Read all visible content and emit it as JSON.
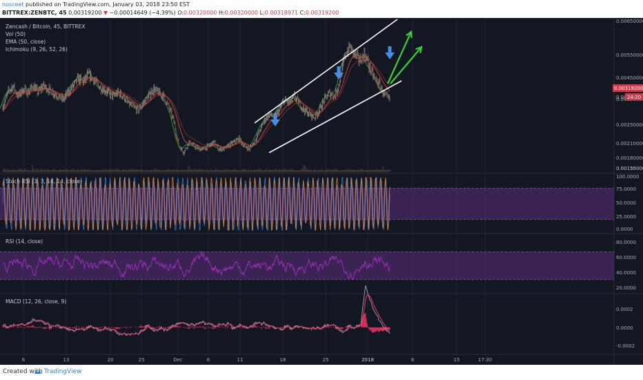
{
  "header": {
    "user": "nosceet",
    "published": " published on TradingView.com, January 03, 2018 23:50 EST",
    "symbol": "BITTREX:ZENBTC, 45",
    "last": "0.00319200",
    "change": "−0.00014649 (−4.39%)",
    "o_label": "O:",
    "o": "0.00320000",
    "h_label": "H:",
    "h": "0.00320000",
    "l_label": "L:",
    "l": "0.00318971",
    "c_label": "C:",
    "c": "0.00319200"
  },
  "footer": {
    "created_with": "Created with",
    "brand": "TradingView"
  },
  "colors": {
    "background": "#131722",
    "grid": "#1f2431",
    "candle_up": "#8e8e8e",
    "candle_down": "#8a6a55",
    "ema": "#c44a3c",
    "ichimoku_green": "#3a8a3a",
    "stoch_k": "#3a7ad0",
    "stoch_d": "#e0823c",
    "rsi": "#a030c0",
    "band": "#4a2a66",
    "macd": "#9aa7b6",
    "signal": "#e0325a",
    "channel": "#ffffff",
    "blue_arrow": "#4a8ce0",
    "green_arrow": "#37d23a",
    "price_badge": "#d23a4b"
  },
  "chart_data": [
    {
      "type": "line",
      "panel": "price",
      "legend": [
        "Zencash / Bitcoin, 45, BITTREX",
        "Vol (50)",
        "EMA (50, close)",
        "Ichimoku (9, 26, 52, 26)"
      ],
      "y_ticks": [
        "0.00650000",
        "0.00550000",
        "0.00450000",
        "0.00350000",
        "0.00250000",
        "0.00210000",
        "0.00180000",
        "0.00150000",
        "0.00125000"
      ],
      "ylim": [
        0.00125,
        0.0065
      ],
      "last_price_label": "0.00319200",
      "countdown_label": "24:20",
      "partial_tick_label": "0.0027",
      "x_ticks": [
        "6",
        "13",
        "20",
        "25",
        "Dec",
        "6",
        "11",
        "18",
        "25",
        "2018",
        "8",
        "15",
        "17:30"
      ],
      "price_path": [
        0.003,
        0.0034,
        0.0036,
        0.0033,
        0.0035,
        0.0034,
        0.0036,
        0.0034,
        0.0036,
        0.0035,
        0.0034,
        0.0033,
        0.0032,
        0.0034,
        0.0036,
        0.0038,
        0.0037,
        0.0039,
        0.0038,
        0.0036,
        0.0035,
        0.0034,
        0.0033,
        0.0034,
        0.0033,
        0.0031,
        0.003,
        0.0029,
        0.0031,
        0.0033,
        0.0035,
        0.0034,
        0.0033,
        0.003,
        0.0026,
        0.0019,
        0.0017,
        0.002,
        0.0019,
        0.0018,
        0.0018,
        0.0019,
        0.002,
        0.0018,
        0.0018,
        0.0019,
        0.002,
        0.0021,
        0.0019,
        0.0018,
        0.002,
        0.0023,
        0.0026,
        0.0028,
        0.0027,
        0.0029,
        0.0032,
        0.0031,
        0.0033,
        0.0031,
        0.0029,
        0.0028,
        0.0027,
        0.0029,
        0.0032,
        0.0034,
        0.0033,
        0.0037,
        0.0044,
        0.0047,
        0.0045,
        0.0043,
        0.0045,
        0.0041,
        0.0038,
        0.0036,
        0.0033,
        0.0032
      ]
    },
    {
      "type": "line",
      "panel": "stoch_rsi",
      "legend": [
        "Stoch RSI (3, 3, 14, 14, close)"
      ],
      "y_ticks": [
        "100.0000",
        "75.0000",
        "50.0000",
        "25.0000",
        "0.0000"
      ],
      "ylim": [
        0,
        100
      ],
      "bands": [
        20,
        80
      ]
    },
    {
      "type": "line",
      "panel": "rsi",
      "legend": [
        "RSI (14, close)"
      ],
      "y_ticks": [
        "80.0000",
        "60.0000",
        "40.0000",
        "20.0000"
      ],
      "ylim": [
        15,
        90
      ],
      "bands": [
        30,
        70
      ]
    },
    {
      "type": "line",
      "panel": "macd",
      "legend": [
        "MACD (12, 26, close, 9)"
      ],
      "y_ticks": [
        "0.0002",
        "0.0000",
        "-0.0002"
      ],
      "ylim": [
        -0.00028,
        0.00035
      ]
    }
  ]
}
